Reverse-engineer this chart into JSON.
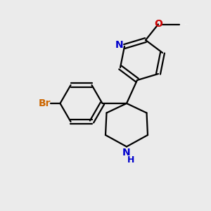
{
  "background_color": "#ebebeb",
  "bond_color": "#000000",
  "nitrogen_color": "#0000cc",
  "oxygen_color": "#cc0000",
  "bromine_color": "#cc6600",
  "figsize": [
    3.0,
    3.0
  ],
  "dpi": 100,
  "xlim": [
    0,
    10
  ],
  "ylim": [
    0,
    10
  ]
}
